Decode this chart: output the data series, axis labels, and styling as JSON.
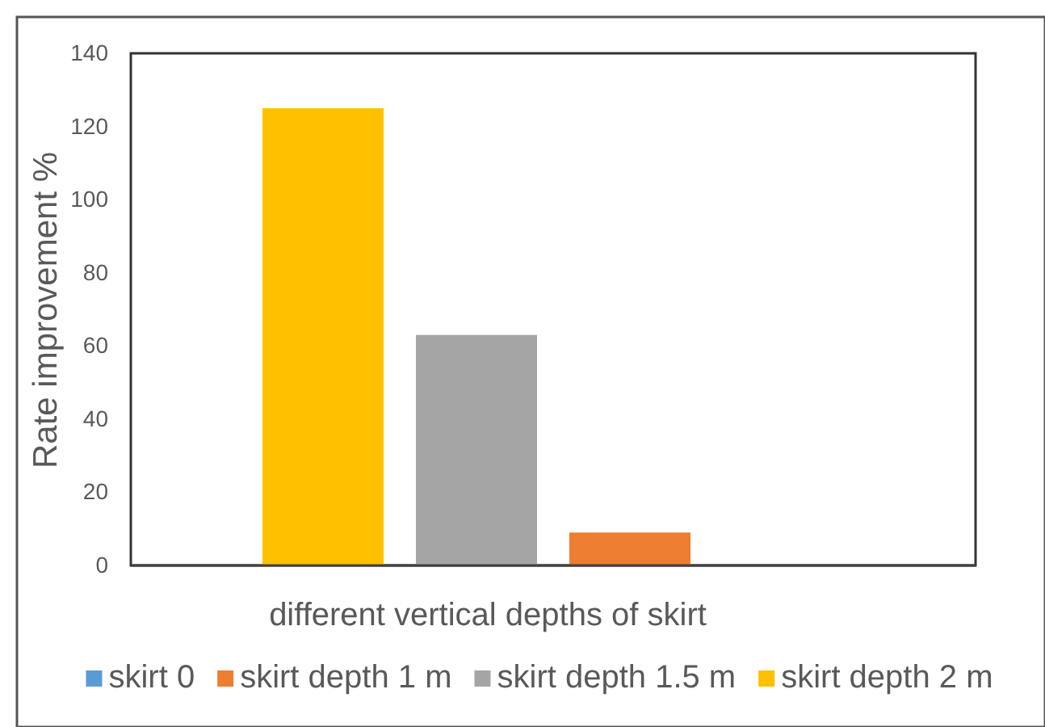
{
  "chart_data": {
    "type": "bar",
    "xlabel": "different vertical depths of skirt",
    "ylabel": "Rate improvement %",
    "categories": [
      null
    ],
    "series": [
      {
        "name": "skirt 0",
        "color": "#5b9bd5",
        "values": [
          0
        ]
      },
      {
        "name": "skirt depth 1 m",
        "color": "#ed7d31",
        "values": [
          9
        ]
      },
      {
        "name": "skirt depth 1.5 m",
        "color": "#a5a5a5",
        "values": [
          63
        ]
      },
      {
        "name": "skirt depth 2 m",
        "color": "#ffc000",
        "values": [
          125
        ]
      }
    ],
    "ylim": [
      0,
      140
    ],
    "yticks": [
      0,
      20,
      40,
      60,
      80,
      100,
      120,
      140
    ],
    "legend": "bottom"
  }
}
